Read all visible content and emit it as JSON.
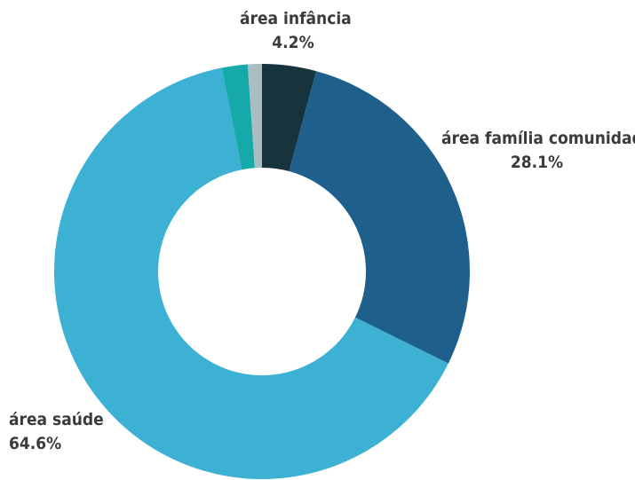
{
  "chart_data": {
    "type": "pie",
    "style": "donut",
    "slices": [
      {
        "label": "área infância",
        "percent_label": "4.2%",
        "value": 4.2,
        "color": "#17333d"
      },
      {
        "label": "área família comunidade",
        "percent_label": "28.1%",
        "value": 28.1,
        "color": "#1f5f8b"
      },
      {
        "label": "área saúde",
        "percent_label": "64.6%",
        "value": 64.6,
        "color": "#3db1d4"
      },
      {
        "label": "",
        "percent_label": "",
        "value": 2.0,
        "color": "#16a9a9"
      },
      {
        "label": "",
        "percent_label": "",
        "value": 1.1,
        "color": "#a8bec4"
      }
    ],
    "labels": {
      "infancia": {
        "name": "área infância",
        "pct": "4.2%"
      },
      "familia": {
        "name": "área família comunidade",
        "pct": "28.1%"
      },
      "saude": {
        "name": "área saúde",
        "pct": "64.6%"
      }
    }
  }
}
